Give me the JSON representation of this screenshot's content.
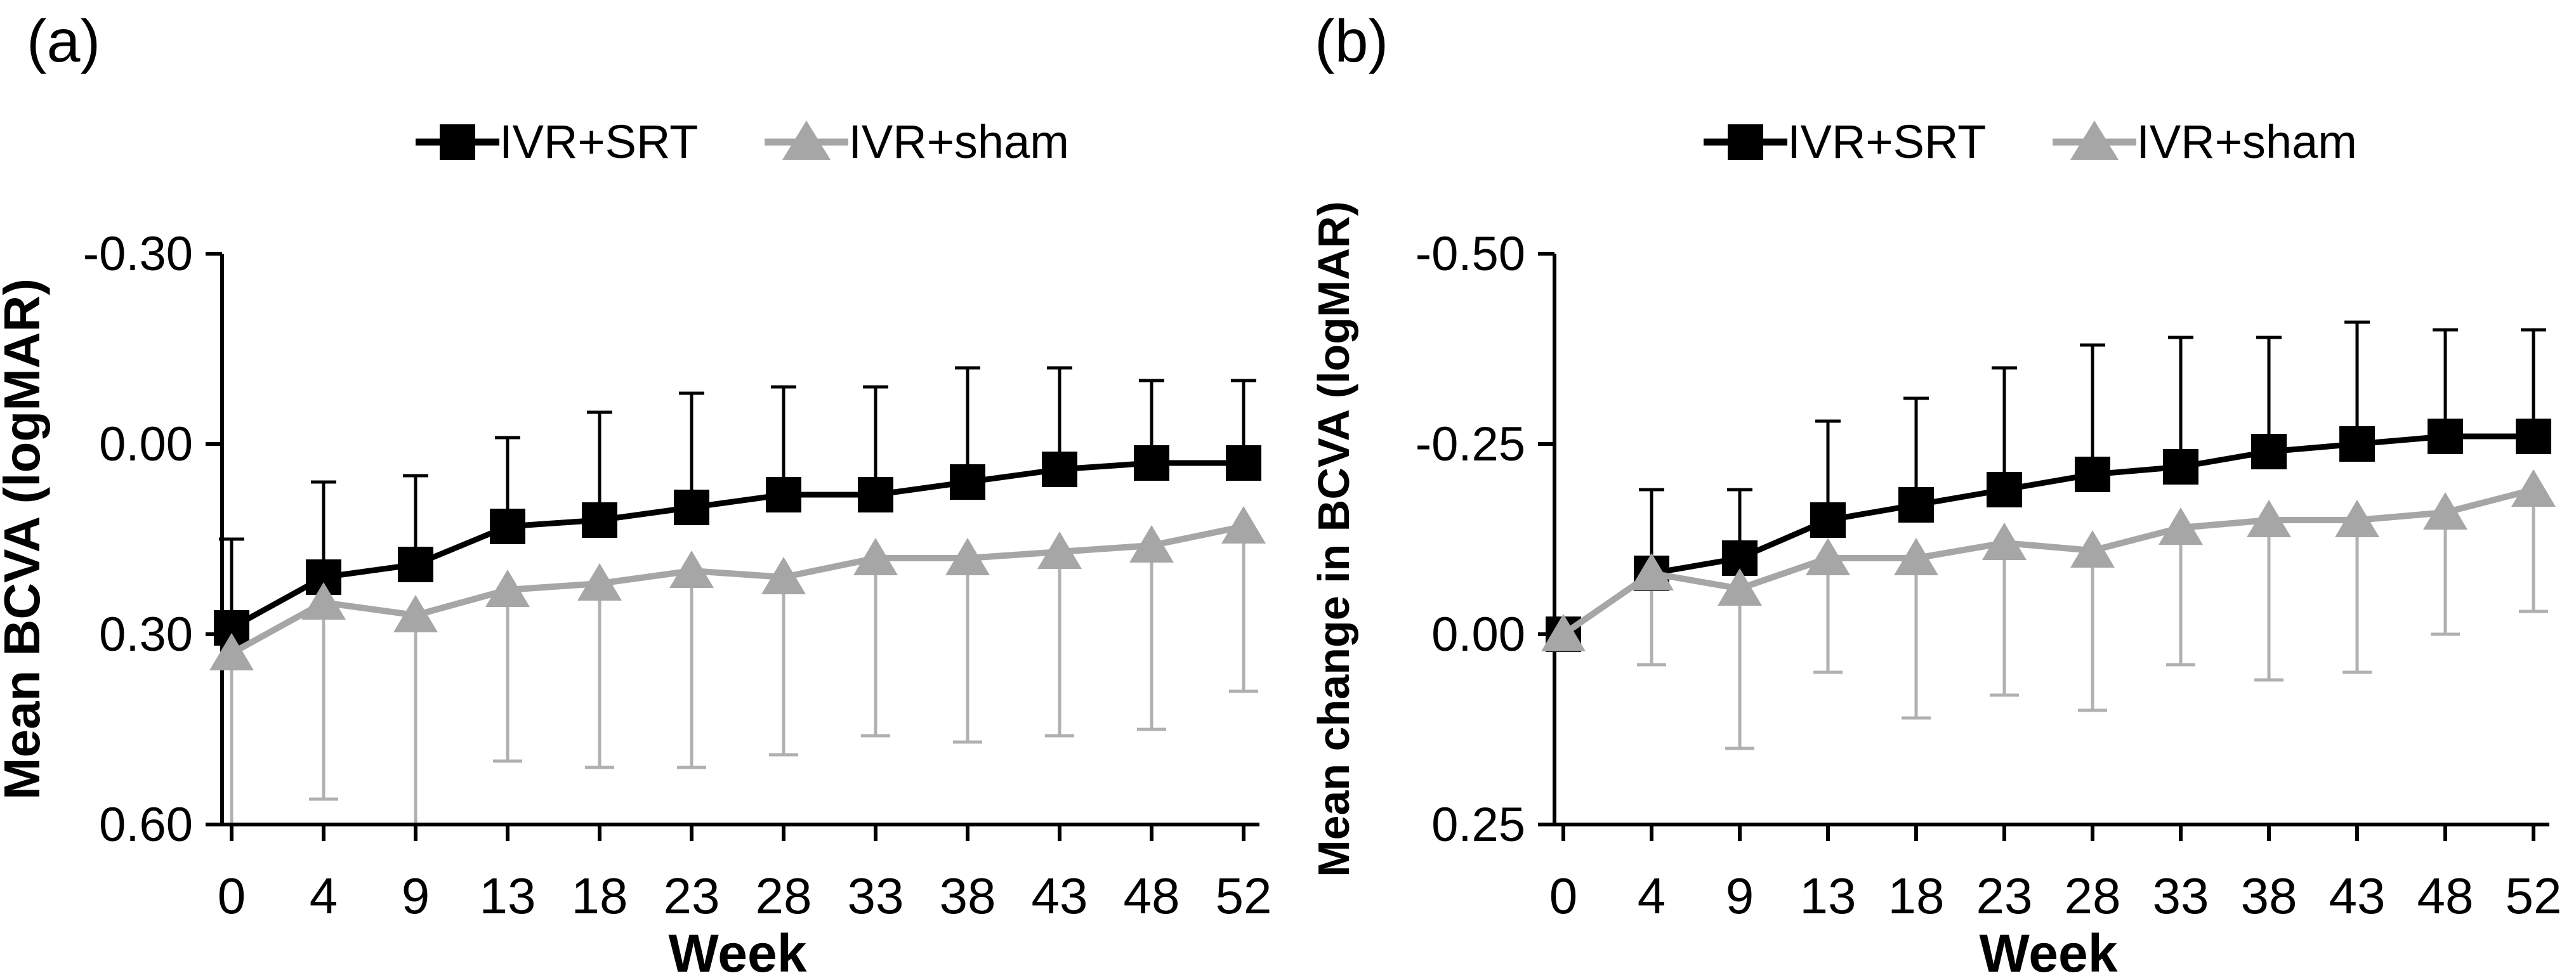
{
  "figure": {
    "background": "#ffffff",
    "panel_labels": [
      "(a)",
      "(b)"
    ]
  },
  "chart_data": [
    {
      "type": "line",
      "panel_label": "(a)",
      "title": "",
      "xlabel": "Week",
      "ylabel": "Mean BCVA (logMAR)",
      "x_categories": [
        "0",
        "4",
        "9",
        "13",
        "18",
        "23",
        "28",
        "33",
        "38",
        "43",
        "48",
        "52"
      ],
      "y_axis": {
        "ticks": [
          -0.3,
          0.0,
          0.3,
          0.6
        ],
        "tick_labels": [
          "-0.30",
          "0.00",
          "0.30",
          "0.60"
        ],
        "direction": "values-increase-downward",
        "grid": false
      },
      "legend_position": "top-center",
      "series": [
        {
          "name": "IVR+SRT",
          "marker": "square",
          "color": "#000000",
          "error_color": "#000000",
          "error_direction": "up",
          "values": [
            0.29,
            0.21,
            0.19,
            0.13,
            0.12,
            0.1,
            0.08,
            0.08,
            0.06,
            0.04,
            0.03,
            0.03
          ],
          "error_tips": [
            0.15,
            0.06,
            0.05,
            -0.01,
            -0.05,
            -0.08,
            -0.09,
            -0.09,
            -0.12,
            -0.12,
            -0.1,
            -0.1
          ],
          "error_caps": [
            true,
            true,
            true,
            true,
            true,
            true,
            true,
            true,
            true,
            true,
            true,
            true
          ]
        },
        {
          "name": "IVR+sham",
          "marker": "triangle",
          "color": "#a6a6a6",
          "error_color": "#b0b0b0",
          "error_direction": "down",
          "values": [
            0.33,
            0.25,
            0.27,
            0.23,
            0.22,
            0.2,
            0.21,
            0.18,
            0.18,
            0.17,
            0.16,
            0.13
          ],
          "error_tips": [
            0.6,
            0.56,
            0.6,
            0.5,
            0.51,
            0.51,
            0.49,
            0.46,
            0.47,
            0.46,
            0.45,
            0.39
          ],
          "error_caps": [
            false,
            true,
            false,
            true,
            true,
            true,
            true,
            true,
            true,
            true,
            true,
            true
          ]
        }
      ]
    },
    {
      "type": "line",
      "panel_label": "(b)",
      "title": "",
      "xlabel": "Week",
      "ylabel": "Mean change in BCVA (logMAR)",
      "x_categories": [
        "0",
        "4",
        "9",
        "13",
        "18",
        "23",
        "28",
        "33",
        "38",
        "43",
        "48",
        "52"
      ],
      "y_axis": {
        "ticks": [
          -0.5,
          -0.25,
          0.0,
          0.25
        ],
        "tick_labels": [
          "-0.50",
          "-0.25",
          "0.00",
          "0.25"
        ],
        "direction": "values-increase-downward",
        "grid": false
      },
      "legend_position": "top-center",
      "series": [
        {
          "name": "IVR+SRT",
          "marker": "square",
          "color": "#000000",
          "error_color": "#000000",
          "error_direction": "up",
          "values": [
            0.0,
            -0.08,
            -0.1,
            -0.15,
            -0.17,
            -0.19,
            -0.21,
            -0.22,
            -0.24,
            -0.25,
            -0.26,
            -0.26
          ],
          "error_tips": [
            null,
            -0.19,
            -0.19,
            -0.28,
            -0.31,
            -0.35,
            -0.38,
            -0.39,
            -0.39,
            -0.41,
            -0.4,
            -0.4
          ],
          "error_caps": [
            false,
            true,
            true,
            true,
            true,
            true,
            true,
            true,
            true,
            true,
            true,
            true
          ]
        },
        {
          "name": "IVR+sham",
          "marker": "triangle",
          "color": "#a6a6a6",
          "error_color": "#b0b0b0",
          "error_direction": "down",
          "values": [
            0.0,
            -0.08,
            -0.06,
            -0.1,
            -0.1,
            -0.12,
            -0.11,
            -0.14,
            -0.15,
            -0.15,
            -0.16,
            -0.19
          ],
          "error_tips": [
            null,
            0.04,
            0.15,
            0.05,
            0.11,
            0.08,
            0.1,
            0.04,
            0.06,
            0.05,
            0.0,
            -0.03
          ],
          "error_caps": [
            false,
            true,
            true,
            true,
            true,
            true,
            true,
            true,
            true,
            true,
            true,
            true
          ]
        }
      ]
    }
  ]
}
